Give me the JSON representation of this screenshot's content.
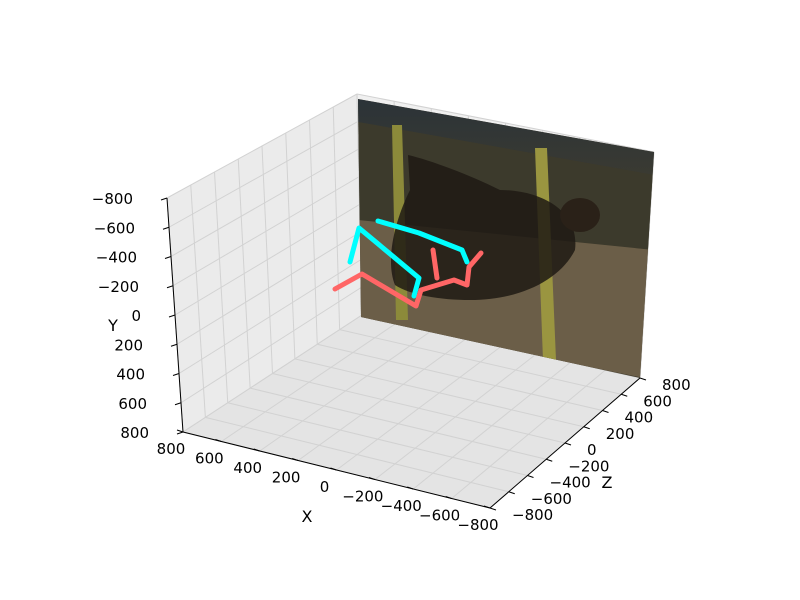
{
  "chart_data": {
    "type": "line",
    "projection": "3d",
    "axes": {
      "x": {
        "label": "X",
        "ticks": [
          "800",
          "600",
          "400",
          "200",
          "0",
          "−200",
          "−400",
          "−600",
          "−800"
        ]
      },
      "y": {
        "label": "Y",
        "ticks": [
          "−800",
          "−600",
          "−400",
          "−200",
          "0",
          "200",
          "400",
          "600",
          "800"
        ]
      },
      "z": {
        "label": "Z",
        "ticks": [
          "−800",
          "−600",
          "−400",
          "−200",
          "0",
          "200",
          "400",
          "600",
          "800"
        ]
      }
    },
    "grid": true,
    "background_image": "photo of a person doing a pull-up between two yellow poles",
    "series": [
      {
        "color": "#00ffff"
      },
      {
        "color": "#ff6666"
      }
    ]
  }
}
